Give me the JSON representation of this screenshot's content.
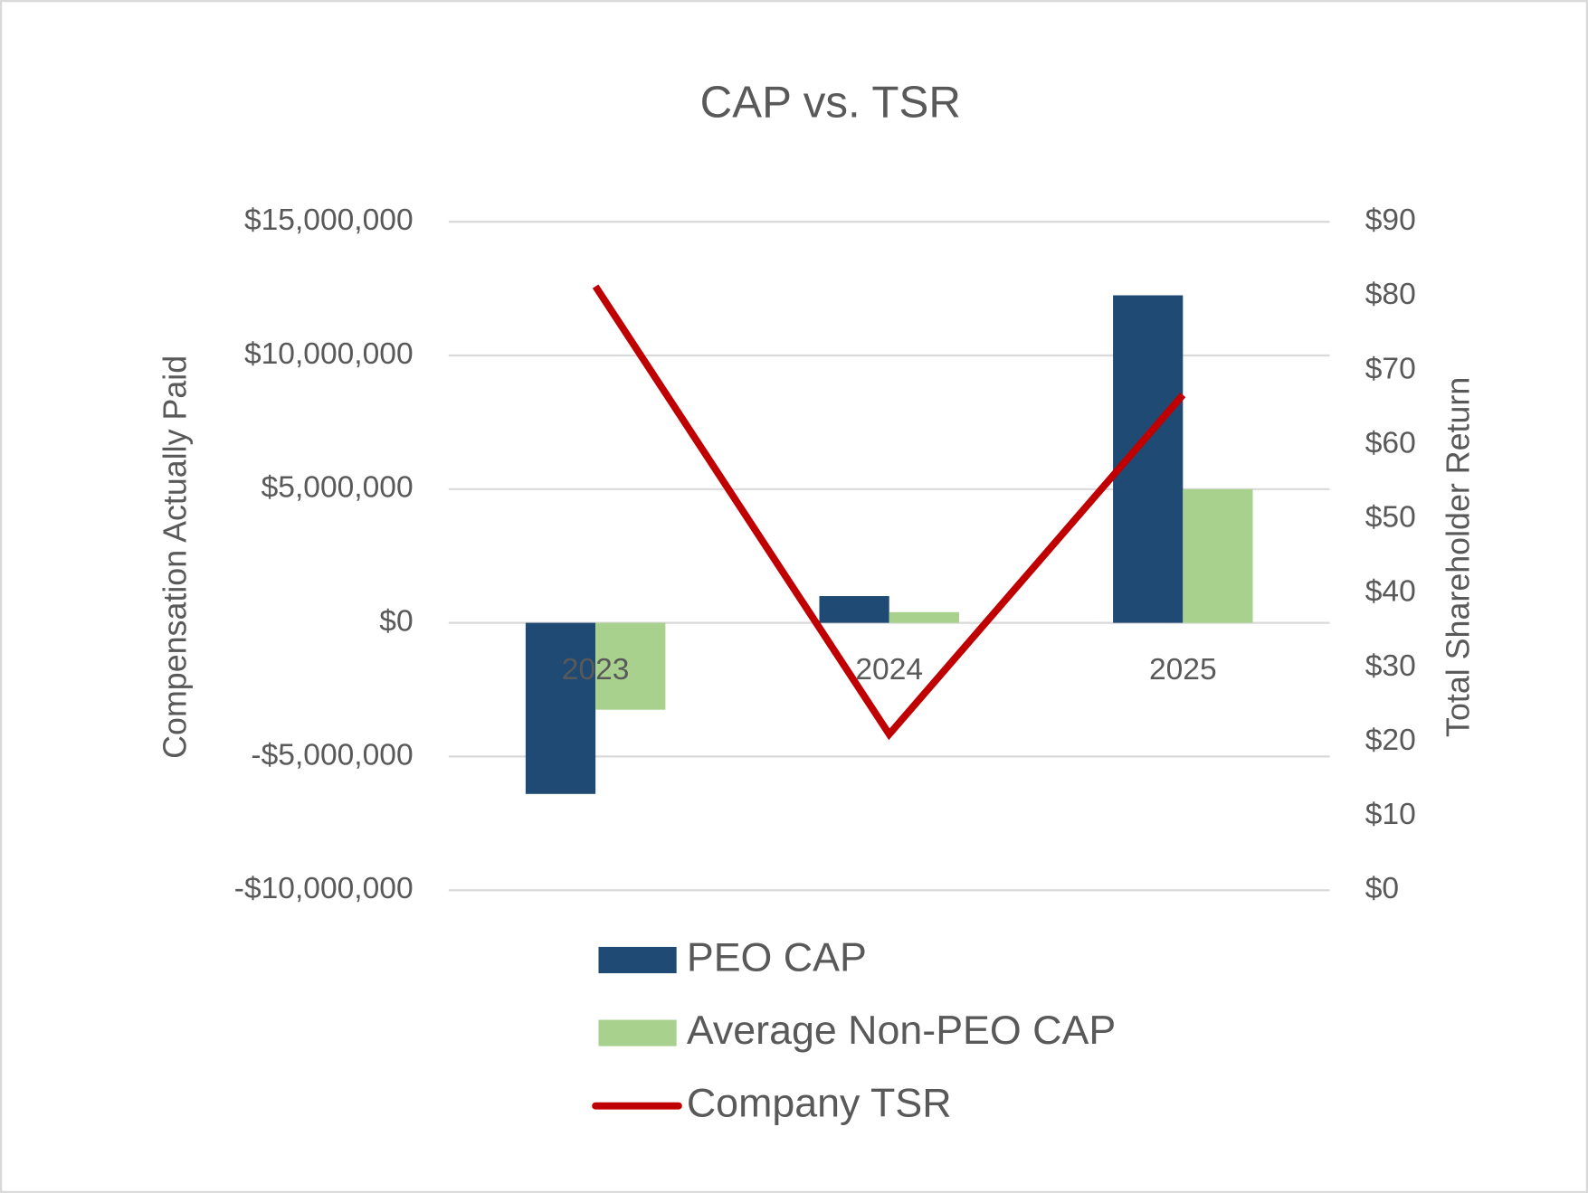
{
  "chart_data": {
    "type": "bar_line",
    "title": "CAP vs. TSR",
    "y_label": "Compensation Actually Paid",
    "y2_label": "Total Shareholder Return",
    "categories": [
      "2023",
      "2024",
      "2025"
    ],
    "series": [
      {
        "name": "PEO CAP",
        "type": "bar",
        "color": "#1f4a73",
        "values": [
          -6400000,
          1000000,
          12250000
        ]
      },
      {
        "name": "Average Non-PEO CAP",
        "type": "bar",
        "color": "#a9d18e",
        "values": [
          -3250000,
          400000,
          5000000
        ]
      },
      {
        "name": "Company TSR",
        "type": "line",
        "color": "#c00000",
        "axis": "y2",
        "values": [
          81.3,
          21,
          66.7
        ]
      }
    ],
    "ylim": [
      -10000000,
      15000000
    ],
    "yticks": [
      {
        "value": -10000000,
        "label": "-$10,000,000"
      },
      {
        "value": -5000000,
        "label": "-$5,000,000"
      },
      {
        "value": 0,
        "label": "$0"
      },
      {
        "value": 5000000,
        "label": "$5,000,000"
      },
      {
        "value": 10000000,
        "label": "$10,000,000"
      },
      {
        "value": 15000000,
        "label": "$15,000,000"
      }
    ],
    "y2lim": [
      0,
      90
    ],
    "y2ticks": [
      {
        "value": 0,
        "label": "$0"
      },
      {
        "value": 10,
        "label": "$10"
      },
      {
        "value": 20,
        "label": "$20"
      },
      {
        "value": 30,
        "label": "$30"
      },
      {
        "value": 40,
        "label": "$40"
      },
      {
        "value": 50,
        "label": "$50"
      },
      {
        "value": 60,
        "label": "$60"
      },
      {
        "value": 70,
        "label": "$70"
      },
      {
        "value": 80,
        "label": "$80"
      },
      {
        "value": 90,
        "label": "$90"
      }
    ],
    "grid": true,
    "legend": "bottom"
  }
}
